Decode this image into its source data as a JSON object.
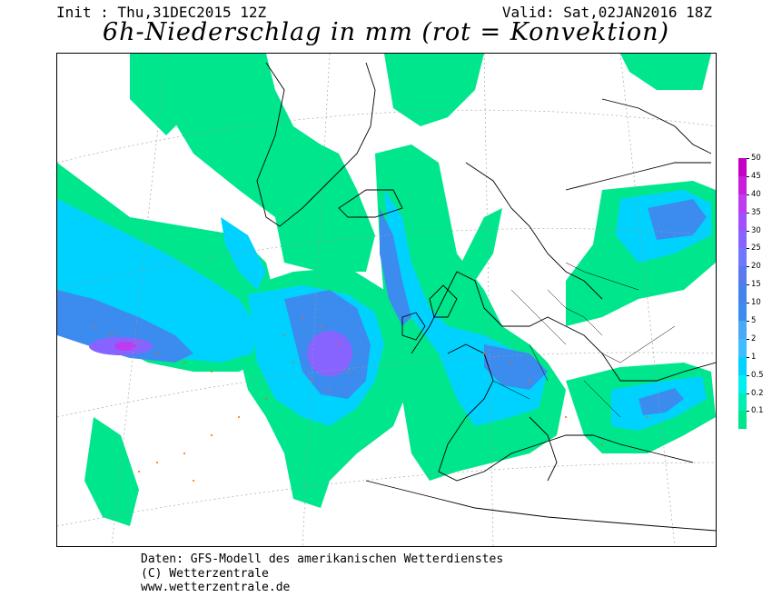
{
  "header": {
    "init": "Init : Thu,31DEC2015 12Z",
    "valid": "Valid: Sat,02JAN2016 18Z",
    "title": "6h-Niederschlag in mm (rot = Konvektion)"
  },
  "legend": {
    "labels": [
      "50",
      "45",
      "40",
      "35",
      "30",
      "25",
      "20",
      "15",
      "10",
      "5",
      "2",
      "1",
      "0.5",
      "0.2",
      "0.1"
    ],
    "colors": [
      "#c400c4",
      "#c81edc",
      "#be3cf0",
      "#a050ff",
      "#8764ff",
      "#6e78ff",
      "#5a78f0",
      "#4682eb",
      "#3c8cf0",
      "#4ba8f5",
      "#3cbeff",
      "#00d2ff",
      "#00f0f0",
      "#00eeb4",
      "#00e68c"
    ]
  },
  "map": {
    "region": "North Atlantic and Europe",
    "colors": {
      "land_line": "#000000",
      "graticule": "#9a9a9a",
      "convection": "#ff6600"
    }
  },
  "footer": {
    "line1": "Daten: GFS-Modell des amerikanischen Wetterdienstes",
    "line2": "(C) Wetterzentrale",
    "line3": "www.wetterzentrale.de"
  }
}
